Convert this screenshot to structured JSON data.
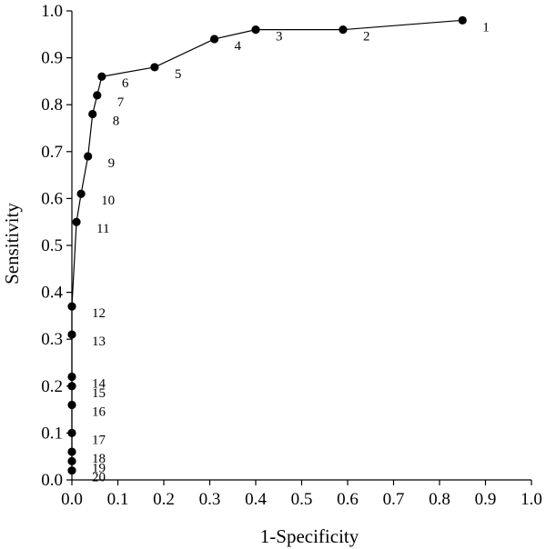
{
  "chart_data": {
    "type": "line",
    "title": "",
    "xlabel": "1-Specificity",
    "ylabel": "Sensitivity",
    "xlim": [
      0,
      1
    ],
    "ylim": [
      0,
      1
    ],
    "x_ticks": [
      "0.0",
      "0.1",
      "0.2",
      "0.3",
      "0.4",
      "0.5",
      "0.6",
      "0.7",
      "0.8",
      "0.9",
      "1.0"
    ],
    "y_ticks": [
      "0.0",
      "0.1",
      "0.2",
      "0.3",
      "0.4",
      "0.5",
      "0.6",
      "0.7",
      "0.8",
      "0.9",
      "1.0"
    ],
    "grid": false,
    "legend": "none",
    "line_color": "#000000",
    "marker_color": "#000000",
    "points": [
      {
        "label": "1",
        "x": 0.85,
        "y": 0.98
      },
      {
        "label": "2",
        "x": 0.59,
        "y": 0.96
      },
      {
        "label": "3",
        "x": 0.4,
        "y": 0.96
      },
      {
        "label": "4",
        "x": 0.31,
        "y": 0.94
      },
      {
        "label": "5",
        "x": 0.18,
        "y": 0.88
      },
      {
        "label": "6",
        "x": 0.065,
        "y": 0.86
      },
      {
        "label": "7",
        "x": 0.055,
        "y": 0.82
      },
      {
        "label": "8",
        "x": 0.045,
        "y": 0.78
      },
      {
        "label": "9",
        "x": 0.035,
        "y": 0.69
      },
      {
        "label": "10",
        "x": 0.02,
        "y": 0.61
      },
      {
        "label": "11",
        "x": 0.01,
        "y": 0.55
      },
      {
        "label": "12",
        "x": 0.0,
        "y": 0.37
      },
      {
        "label": "13",
        "x": 0.0,
        "y": 0.31
      },
      {
        "label": "14",
        "x": 0.0,
        "y": 0.22
      },
      {
        "label": "15",
        "x": 0.0,
        "y": 0.2
      },
      {
        "label": "16",
        "x": 0.0,
        "y": 0.16
      },
      {
        "label": "17",
        "x": 0.0,
        "y": 0.1
      },
      {
        "label": "18",
        "x": 0.0,
        "y": 0.06
      },
      {
        "label": "19",
        "x": 0.0,
        "y": 0.04
      },
      {
        "label": "20",
        "x": 0.0,
        "y": 0.02
      }
    ]
  }
}
